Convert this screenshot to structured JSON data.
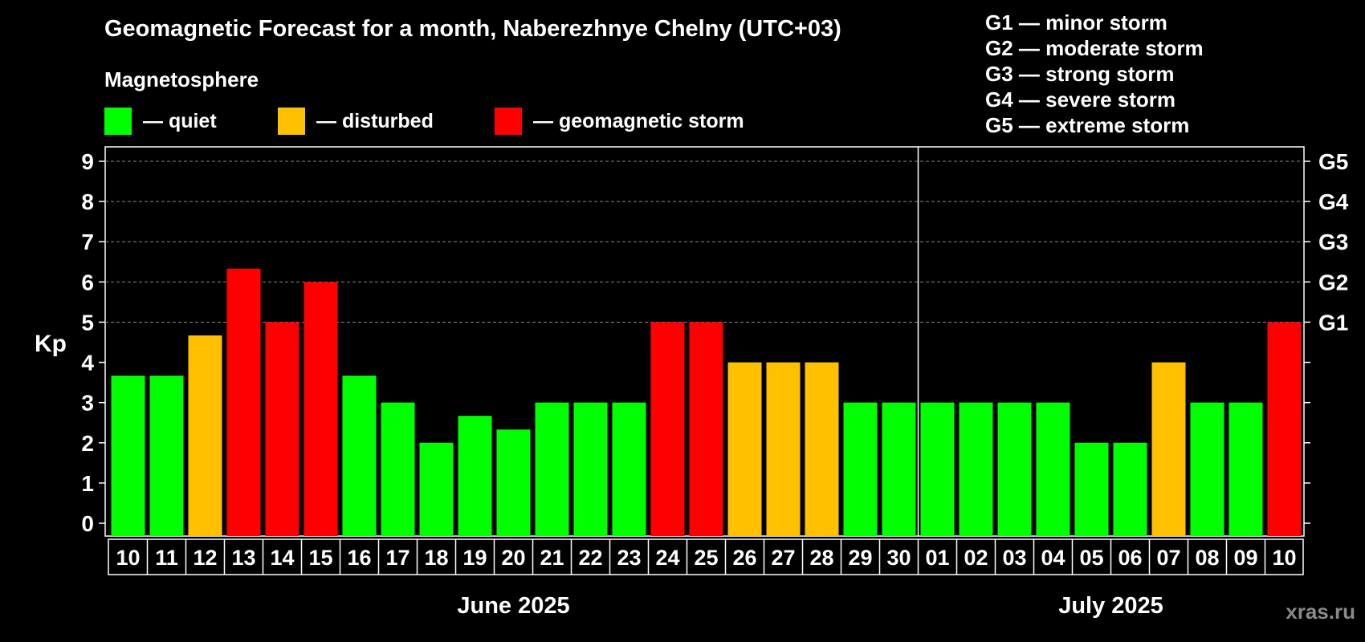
{
  "title": "Geomagnetic Forecast for a month, Naberezhnye Chelny (UTC+03)",
  "legend": {
    "title": "Magnetosphere",
    "items": [
      {
        "label": "— quiet",
        "color": "#00ff00"
      },
      {
        "label": "— disturbed",
        "color": "#ffc000"
      },
      {
        "label": "— geomagnetic storm",
        "color": "#ff0000"
      }
    ]
  },
  "storm_scale": [
    {
      "label": "G1 — minor storm"
    },
    {
      "label": "G2 — moderate storm"
    },
    {
      "label": "G3 — strong storm"
    },
    {
      "label": "G4 — severe storm"
    },
    {
      "label": "G5 — extreme storm"
    }
  ],
  "watermark": "xras.ru",
  "chart_data": {
    "type": "bar",
    "title": "Geomagnetic Forecast for a month, Naberezhnye Chelny (UTC+03)",
    "ylabel": "Kp",
    "ylim": [
      0,
      9
    ],
    "yticks": [
      "0",
      "1",
      "2",
      "3",
      "4",
      "5",
      "6",
      "7",
      "8",
      "9"
    ],
    "right_axis_labels": [
      {
        "kp": 5,
        "label": "G1"
      },
      {
        "kp": 6,
        "label": "G2"
      },
      {
        "kp": 7,
        "label": "G3"
      },
      {
        "kp": 8,
        "label": "G4"
      },
      {
        "kp": 9,
        "label": "G5"
      }
    ],
    "grid": "dashed horizontal at Kp 5-9",
    "months": [
      {
        "label": "June 2025",
        "from": 0,
        "to": 20
      },
      {
        "label": "July 2025",
        "from": 21,
        "to": 30
      }
    ],
    "categories": [
      "10",
      "11",
      "12",
      "13",
      "14",
      "15",
      "16",
      "17",
      "18",
      "19",
      "20",
      "21",
      "22",
      "23",
      "24",
      "25",
      "26",
      "27",
      "28",
      "29",
      "30",
      "01",
      "02",
      "03",
      "04",
      "05",
      "06",
      "07",
      "08",
      "09",
      "10"
    ],
    "values": [
      3.67,
      3.67,
      4.67,
      6.33,
      5,
      6,
      3.67,
      3,
      2,
      2.67,
      2.33,
      3,
      3,
      3,
      5,
      5,
      4,
      4,
      4,
      3,
      3,
      3,
      3,
      3,
      3,
      2,
      2,
      4,
      3,
      3,
      5
    ],
    "levels": [
      "quiet",
      "quiet",
      "disturbed",
      "storm",
      "storm",
      "storm",
      "quiet",
      "quiet",
      "quiet",
      "quiet",
      "quiet",
      "quiet",
      "quiet",
      "quiet",
      "storm",
      "storm",
      "disturbed",
      "disturbed",
      "disturbed",
      "quiet",
      "quiet",
      "quiet",
      "quiet",
      "quiet",
      "quiet",
      "quiet",
      "quiet",
      "disturbed",
      "quiet",
      "quiet",
      "storm"
    ],
    "level_colors": {
      "quiet": "#00ff00",
      "disturbed": "#ffc000",
      "storm": "#ff0000"
    }
  }
}
